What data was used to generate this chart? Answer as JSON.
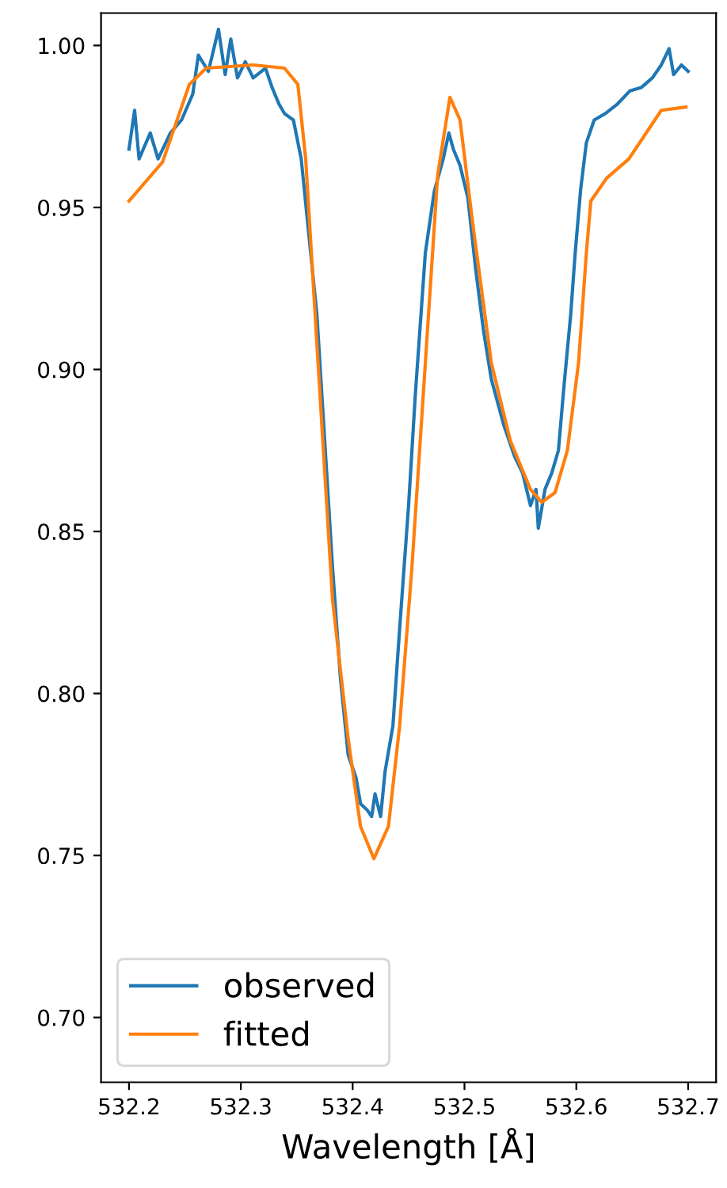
{
  "chart_data": {
    "type": "line",
    "xlabel": "Wavelength [Å]",
    "xlim": [
      532.175,
      532.725
    ],
    "ylim": [
      0.68,
      1.01
    ],
    "xticks": [
      {
        "value": 532.2,
        "label": "532.2"
      },
      {
        "value": 532.3,
        "label": "532.3"
      },
      {
        "value": 532.4,
        "label": "532.4"
      },
      {
        "value": 532.5,
        "label": "532.5"
      },
      {
        "value": 532.6,
        "label": "532.6"
      },
      {
        "value": 532.7,
        "label": "532.7"
      }
    ],
    "yticks": [
      {
        "value": 0.7,
        "label": "0.70"
      },
      {
        "value": 0.75,
        "label": "0.75"
      },
      {
        "value": 0.8,
        "label": "0.80"
      },
      {
        "value": 0.85,
        "label": "0.85"
      },
      {
        "value": 0.9,
        "label": "0.90"
      },
      {
        "value": 0.95,
        "label": "0.95"
      },
      {
        "value": 1.0,
        "label": "1.00"
      }
    ],
    "grid": false,
    "legend": "bottom left",
    "marker": "none",
    "line_style": "solid",
    "series": [
      {
        "name": "observed",
        "color": "#1f77b4",
        "x": [
          532.2,
          532.205,
          532.209,
          532.219,
          532.226,
          532.237,
          532.247,
          532.257,
          532.262,
          532.271,
          532.28,
          532.286,
          532.291,
          532.297,
          532.304,
          532.311,
          532.322,
          532.328,
          532.334,
          532.339,
          532.347,
          532.354,
          532.361,
          532.368,
          532.375,
          532.382,
          532.389,
          532.396,
          532.403,
          532.407,
          532.413,
          532.417,
          532.42,
          532.425,
          532.429,
          532.436,
          532.442,
          532.45,
          532.456,
          532.465,
          532.473,
          532.481,
          532.486,
          532.49,
          532.496,
          532.503,
          532.51,
          532.517,
          532.524,
          532.535,
          532.545,
          532.552,
          532.559,
          532.564,
          532.566,
          532.572,
          532.578,
          532.584,
          532.589,
          532.595,
          532.599,
          532.604,
          532.609,
          532.616,
          532.626,
          532.637,
          532.648,
          532.658,
          532.668,
          532.676,
          532.683,
          532.687,
          532.694,
          532.7
        ],
        "values": [
          0.968,
          0.98,
          0.965,
          0.973,
          0.965,
          0.973,
          0.977,
          0.985,
          0.997,
          0.992,
          1.005,
          0.991,
          1.002,
          0.99,
          0.995,
          0.99,
          0.993,
          0.987,
          0.982,
          0.979,
          0.977,
          0.965,
          0.941,
          0.917,
          0.878,
          0.839,
          0.805,
          0.781,
          0.774,
          0.766,
          0.764,
          0.762,
          0.769,
          0.762,
          0.776,
          0.79,
          0.82,
          0.858,
          0.892,
          0.936,
          0.955,
          0.965,
          0.973,
          0.968,
          0.963,
          0.953,
          0.931,
          0.912,
          0.897,
          0.883,
          0.873,
          0.868,
          0.858,
          0.863,
          0.851,
          0.863,
          0.868,
          0.875,
          0.895,
          0.917,
          0.936,
          0.956,
          0.97,
          0.977,
          0.979,
          0.982,
          0.986,
          0.987,
          0.99,
          0.994,
          0.999,
          0.991,
          0.994,
          0.992
        ]
      },
      {
        "name": "fitted",
        "color": "#ff7f0e",
        "x": [
          532.2,
          532.23,
          532.254,
          532.269,
          532.311,
          532.339,
          532.351,
          532.358,
          532.368,
          532.382,
          532.396,
          532.407,
          532.419,
          532.432,
          532.442,
          532.453,
          532.465,
          532.476,
          532.487,
          532.496,
          532.507,
          532.524,
          532.541,
          532.559,
          532.569,
          532.581,
          532.592,
          532.602,
          532.609,
          532.613,
          532.627,
          532.647,
          532.676,
          532.698
        ],
        "values": [
          0.952,
          0.964,
          0.988,
          0.993,
          0.994,
          0.993,
          0.988,
          0.965,
          0.908,
          0.829,
          0.786,
          0.759,
          0.749,
          0.759,
          0.79,
          0.839,
          0.902,
          0.96,
          0.984,
          0.977,
          0.946,
          0.902,
          0.878,
          0.863,
          0.859,
          0.862,
          0.875,
          0.902,
          0.936,
          0.952,
          0.959,
          0.965,
          0.98,
          0.981
        ]
      }
    ]
  }
}
